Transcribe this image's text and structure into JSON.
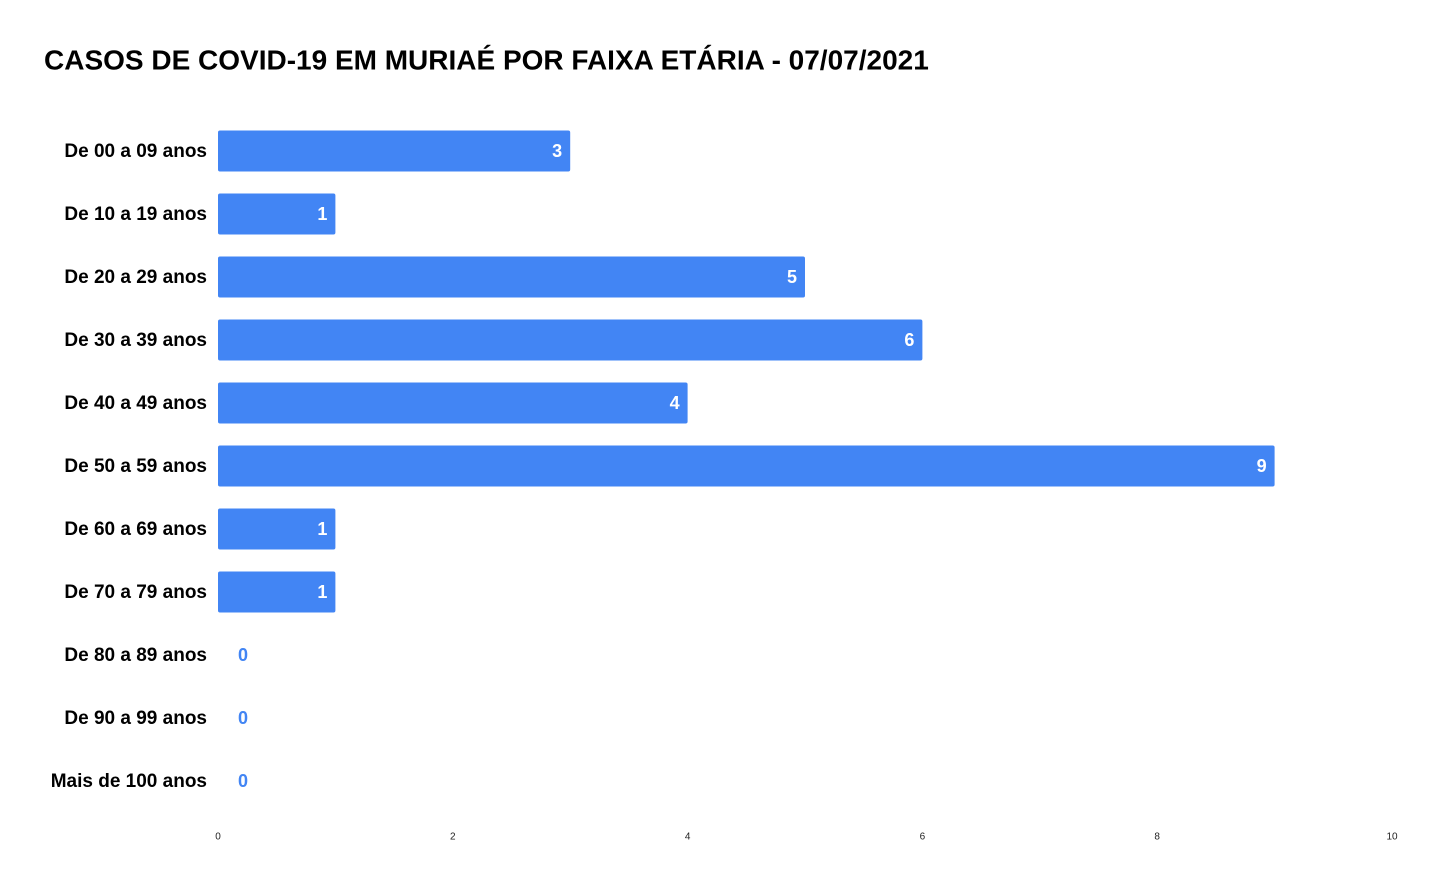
{
  "chart_data": {
    "type": "bar",
    "orientation": "horizontal",
    "title": "CASOS DE COVID-19 EM MURIAÉ POR FAIXA ETÁRIA - 07/07/2021",
    "categories": [
      "De 00 a 09 anos",
      "De 10 a 19 anos",
      "De 20 a 29 anos",
      "De 30 a 39 anos",
      "De 40 a 49 anos",
      "De 50 a 59 anos",
      "De 60 a 69 anos",
      "De 70 a 79 anos",
      "De 80 a 89 anos",
      "De 90 a 99 anos",
      "Mais de 100 anos"
    ],
    "values": [
      3,
      1,
      5,
      6,
      4,
      9,
      1,
      1,
      0,
      0,
      0
    ],
    "color": "#4285f4",
    "xlim": [
      0,
      10
    ],
    "xticks": [
      0,
      2,
      4,
      6,
      8,
      10
    ],
    "grid": false
  }
}
